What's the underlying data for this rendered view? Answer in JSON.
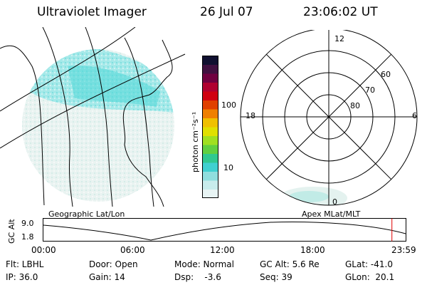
{
  "header": {
    "instrument": "Ultraviolet Imager",
    "date": "26 Jul 07",
    "time": "23:06:02 UT"
  },
  "panels": {
    "left_label": "Geographic Lat/Lon",
    "right_label": "Apex MLat/MLT"
  },
  "colorbar": {
    "unit_label": "photon cm⁻²s⁻¹",
    "ticks": [
      "100",
      "10"
    ],
    "colors": [
      "#e8f4f4",
      "#c8ecec",
      "#90dede",
      "#40d0d0",
      "#30c890",
      "#60d040",
      "#a0e020",
      "#e0e000",
      "#f0c000",
      "#f08000",
      "#e04000",
      "#d00010",
      "#b00030",
      "#700040",
      "#401040",
      "#101030"
    ]
  },
  "polar": {
    "mlt_labels": {
      "top": "12",
      "left": "18",
      "right": "6",
      "bottom": "0"
    },
    "lat_labels": [
      "60",
      "70",
      "80"
    ]
  },
  "timeline": {
    "ylabel": "GC Alt",
    "y_high": "9.0",
    "y_low": "1.8",
    "x_ticks": [
      "00:00",
      "06:00",
      "12:00",
      "18:00",
      "23:59"
    ],
    "current_time_fraction": 0.962
  },
  "info": {
    "flt": "Flt: LBHL",
    "ip": "IP: 36.0",
    "door": "Door: Open",
    "gain": "Gain: 14",
    "mode": "Mode: Normal",
    "dsp": "Dsp:    -3.6",
    "gcalt": "GC Alt: 5.6 Re",
    "seq": "Seq: 39",
    "glat": "GLat: -41.0",
    "glon": "GLon:  20.1"
  }
}
